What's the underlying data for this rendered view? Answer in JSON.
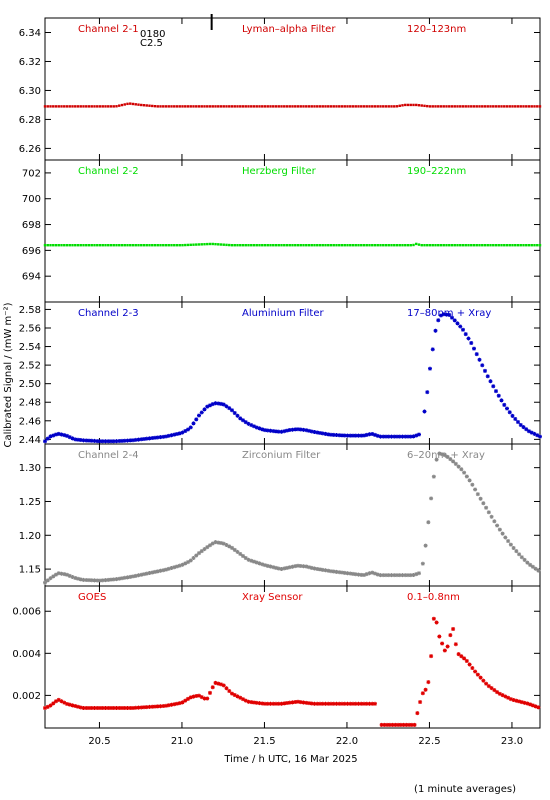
{
  "chart_data": {
    "type": "scatter",
    "xlabel": "Time / h UTC, 16 Mar 2025",
    "ylabel": "Calibrated Signal / (mW m⁻²)",
    "footnote": "(1 minute averages)",
    "xlim": [
      20.17,
      23.17
    ],
    "xticks": [
      "20.5",
      "21.0",
      "21.5",
      "22.0",
      "22.5",
      "23.0"
    ],
    "flare_marker": {
      "time": 21.18,
      "labels": [
        "0180",
        "C2.5"
      ]
    },
    "panels": [
      {
        "channel": "Channel 2-1",
        "filter": "Lyman–alpha Filter",
        "band": "120–123nm",
        "color": "#d00000",
        "marker": "dot",
        "ylim": [
          6.252,
          6.35
        ],
        "yticks": [
          "6.26",
          "6.28",
          "6.30",
          "6.32",
          "6.34"
        ],
        "series": [
          {
            "t": [
              20.17,
              20.6,
              20.68,
              20.75,
              20.85,
              22.3,
              22.35,
              22.42,
              22.5,
              23.17
            ],
            "v": [
              6.289,
              6.289,
              6.291,
              6.29,
              6.289,
              6.289,
              6.29,
              6.29,
              6.289,
              6.289
            ]
          }
        ]
      },
      {
        "channel": "Channel 2-2",
        "filter": "Herzberg Filter",
        "band": "190–222nm",
        "color": "#00dd00",
        "marker": "dot",
        "ylim": [
          692.0,
          703.0
        ],
        "yticks": [
          "694",
          "696",
          "698",
          "700",
          "702"
        ],
        "series": [
          {
            "t": [
              20.17,
              21.0,
              21.18,
              21.3,
              22.4,
              22.42,
              22.45,
              23.17
            ],
            "v": [
              696.4,
              696.4,
              696.5,
              696.4,
              696.4,
              696.5,
              696.4,
              696.4
            ]
          }
        ]
      },
      {
        "channel": "Channel 2-3",
        "filter": "Aluminium Filter",
        "band": "17–80nm + Xray",
        "color": "#0000c8",
        "marker": "star",
        "ylim": [
          2.435,
          2.588
        ],
        "yticks": [
          "2.44",
          "2.46",
          "2.48",
          "2.50",
          "2.52",
          "2.54",
          "2.56",
          "2.58"
        ],
        "series": [
          {
            "t": [
              20.17,
              20.2,
              20.25,
              20.3,
              20.35,
              20.4,
              20.5,
              20.6,
              20.7,
              20.8,
              20.9,
              21.0,
              21.05,
              21.1,
              21.15,
              21.2,
              21.25,
              21.3,
              21.35,
              21.4,
              21.45,
              21.5,
              21.55,
              21.6,
              21.65,
              21.7,
              21.75,
              21.8,
              21.9,
              22.0,
              22.1,
              22.15,
              22.2,
              22.3,
              22.4,
              22.45
            ],
            "v": [
              2.438,
              2.443,
              2.446,
              2.444,
              2.44,
              2.439,
              2.438,
              2.438,
              2.439,
              2.441,
              2.443,
              2.447,
              2.452,
              2.465,
              2.475,
              2.479,
              2.478,
              2.472,
              2.463,
              2.457,
              2.453,
              2.45,
              2.449,
              2.448,
              2.45,
              2.451,
              2.45,
              2.448,
              2.445,
              2.444,
              2.444,
              2.446,
              2.443,
              2.443,
              2.443,
              2.446
            ]
          },
          {
            "t": [
              22.47,
              22.49,
              22.5,
              22.52,
              22.54,
              22.56,
              22.58,
              22.62,
              22.66,
              22.7,
              22.75,
              22.8,
              22.85,
              22.9,
              22.95,
              23.0,
              23.05,
              23.1,
              23.17
            ],
            "v": [
              2.47,
              2.495,
              2.512,
              2.537,
              2.561,
              2.572,
              2.575,
              2.574,
              2.567,
              2.559,
              2.545,
              2.527,
              2.509,
              2.493,
              2.478,
              2.466,
              2.456,
              2.449,
              2.443
            ]
          }
        ]
      },
      {
        "channel": "Channel 2-4",
        "filter": "Zirconium Filter",
        "band": "6–20nm + Xray",
        "color": "#888888",
        "marker": "star",
        "ylim": [
          1.125,
          1.335
        ],
        "yticks": [
          "1.15",
          "1.20",
          "1.25",
          "1.30"
        ],
        "series": [
          {
            "t": [
              20.17,
              20.2,
              20.25,
              20.3,
              20.35,
              20.4,
              20.5,
              20.6,
              20.7,
              20.8,
              20.9,
              21.0,
              21.05,
              21.1,
              21.15,
              21.2,
              21.25,
              21.3,
              21.35,
              21.4,
              21.5,
              21.6,
              21.7,
              21.75,
              21.8,
              21.9,
              22.0,
              22.1,
              22.15,
              22.2,
              22.3,
              22.4,
              22.45
            ],
            "v": [
              1.13,
              1.136,
              1.144,
              1.142,
              1.137,
              1.134,
              1.133,
              1.135,
              1.139,
              1.144,
              1.149,
              1.156,
              1.162,
              1.173,
              1.182,
              1.19,
              1.188,
              1.182,
              1.173,
              1.164,
              1.156,
              1.15,
              1.155,
              1.154,
              1.151,
              1.147,
              1.144,
              1.141,
              1.145,
              1.141,
              1.141,
              1.141,
              1.145
            ]
          },
          {
            "t": [
              22.46,
              22.48,
              22.5,
              22.52,
              22.54,
              22.56,
              22.6,
              22.65,
              22.7,
              22.75,
              22.8,
              22.85,
              22.9,
              22.95,
              23.0,
              23.05,
              23.1,
              23.17
            ],
            "v": [
              1.158,
              1.19,
              1.234,
              1.275,
              1.31,
              1.321,
              1.318,
              1.308,
              1.296,
              1.279,
              1.258,
              1.238,
              1.218,
              1.2,
              1.184,
              1.17,
              1.158,
              1.146
            ]
          }
        ]
      },
      {
        "channel": "GOES",
        "filter": "Xray Sensor",
        "band": "0.1–0.8nm",
        "color": "#e00000",
        "marker": "star",
        "ylim": [
          0.00045,
          0.0072
        ],
        "yticks": [
          "0.002",
          "0.004",
          "0.006"
        ],
        "series": [
          {
            "t": [
              20.17,
              20.2,
              20.25,
              20.3,
              20.35,
              20.4,
              20.5,
              20.6,
              20.7,
              20.8,
              20.9,
              21.0,
              21.05,
              21.1,
              21.15,
              21.2,
              21.25,
              21.3,
              21.35,
              21.4,
              21.5,
              21.6,
              21.7,
              21.8,
              21.9,
              22.0,
              22.1,
              22.18
            ],
            "v": [
              0.0014,
              0.0015,
              0.0018,
              0.0016,
              0.0015,
              0.0014,
              0.0014,
              0.0014,
              0.0014,
              0.00145,
              0.0015,
              0.00165,
              0.0019,
              0.002,
              0.0018,
              0.0026,
              0.0025,
              0.0021,
              0.0019,
              0.0017,
              0.0016,
              0.0016,
              0.0017,
              0.0016,
              0.0016,
              0.0016,
              0.0016,
              0.0016
            ]
          },
          {
            "t": [
              22.21,
              22.26,
              22.38,
              22.41,
              22.44,
              22.46,
              22.48,
              22.5,
              22.53,
              22.56,
              22.6,
              22.64,
              22.67,
              22.72,
              22.78,
              22.85,
              22.92,
              23.0,
              23.1,
              23.17
            ],
            "v": [
              0.0006,
              0.0006,
              0.0006,
              0.0006,
              0.0016,
              0.0021,
              0.0023,
              0.0028,
              0.006,
              0.0048,
              0.004,
              0.0053,
              0.004,
              0.0037,
              0.0031,
              0.0025,
              0.0021,
              0.0018,
              0.0016,
              0.0014
            ]
          }
        ]
      }
    ]
  }
}
